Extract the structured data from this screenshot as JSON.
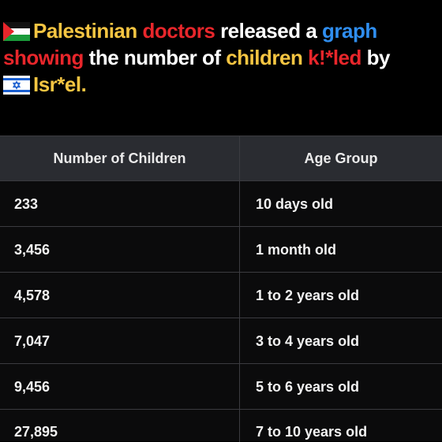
{
  "title": {
    "segments": [
      {
        "text": "Palestinian ",
        "color": "yellow"
      },
      {
        "text": "doctors",
        "color": "red"
      },
      {
        "text": " released a ",
        "color": "white"
      },
      {
        "text": "graph",
        "color": "blue"
      },
      {
        "text": " ",
        "color": "white"
      },
      {
        "text": "showing",
        "color": "red"
      },
      {
        "text": " the number of ",
        "color": "white"
      },
      {
        "text": "children",
        "color": "yellow"
      },
      {
        "text": " k!*led",
        "color": "red"
      },
      {
        "text": " by ",
        "color": "white"
      },
      {
        "text": "Isr*el.",
        "color": "yellow"
      }
    ],
    "flags": [
      "palestine-flag-icon",
      "israel-flag-icon"
    ]
  },
  "table": {
    "headers": [
      "Number of Children",
      "Age Group"
    ],
    "rows": [
      {
        "count": "233",
        "age": "10 days old"
      },
      {
        "count": "3,456",
        "age": "1 month old"
      },
      {
        "count": "4,578",
        "age": "1 to 2 years old"
      },
      {
        "count": "7,047",
        "age": "3 to 4 years old"
      },
      {
        "count": "9,456",
        "age": "5 to 6 years old"
      },
      {
        "count": "27,895",
        "age": "7 to 10 years old"
      }
    ]
  },
  "colors": {
    "yellow": "#f5c542",
    "red": "#e8262b",
    "blue": "#2f8ef0",
    "header_bg": "#2a2c31",
    "grid": "#3b3b40"
  }
}
